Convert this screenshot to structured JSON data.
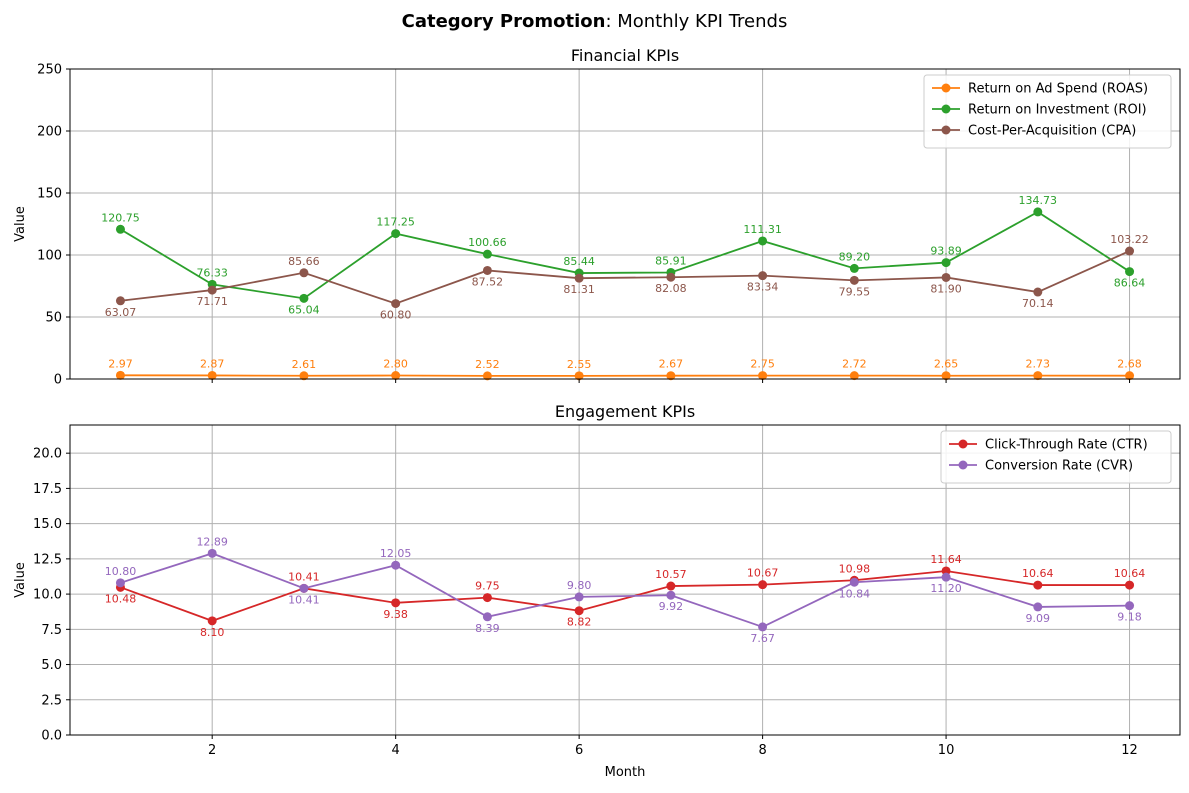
{
  "chart_data": {
    "suptitle_bold": "Category Promotion",
    "suptitle_rest": ": Monthly KPI Trends",
    "panels": [
      {
        "type": "line",
        "title": "Financial KPIs",
        "xlabel": "",
        "ylabel": "Value",
        "xlim": [
          0.45,
          12.55
        ],
        "ylim": [
          0,
          250
        ],
        "yticks": [
          0,
          50,
          100,
          150,
          200,
          250
        ],
        "ytick_labels": [
          "0",
          "50",
          "100",
          "150",
          "200",
          "250"
        ],
        "xticks": [
          2,
          4,
          6,
          8,
          10,
          12
        ],
        "xtick_labels": [],
        "grid": true,
        "legend": "top-right",
        "x": [
          1,
          2,
          3,
          4,
          5,
          6,
          7,
          8,
          9,
          10,
          11,
          12
        ],
        "series": [
          {
            "name": "Return on Ad Spend (ROAS)",
            "color": "#ff7f0e",
            "values": [
              2.97,
              2.87,
              2.61,
              2.8,
              2.52,
              2.55,
              2.67,
              2.75,
              2.72,
              2.65,
              2.73,
              2.68
            ],
            "labels": [
              "2.97",
              "2.87",
              "2.61",
              "2.80",
              "2.52",
              "2.55",
              "2.67",
              "2.75",
              "2.72",
              "2.65",
              "2.73",
              "2.68"
            ],
            "label_pos": [
              "above",
              "above",
              "above",
              "above",
              "above",
              "above",
              "above",
              "above",
              "above",
              "above",
              "above",
              "above"
            ]
          },
          {
            "name": "Return on Investment (ROI)",
            "color": "#2ca02c",
            "values": [
              120.75,
              76.33,
              65.04,
              117.25,
              100.66,
              85.44,
              85.91,
              111.31,
              89.2,
              93.89,
              134.73,
              86.64
            ],
            "labels": [
              "120.75",
              "76.33",
              "65.04",
              "117.25",
              "100.66",
              "85.44",
              "85.91",
              "111.31",
              "89.20",
              "93.89",
              "134.73",
              "86.64"
            ],
            "label_pos": [
              "above",
              "above",
              "below",
              "above",
              "above",
              "above",
              "above",
              "above",
              "above",
              "above",
              "above",
              "below"
            ]
          },
          {
            "name": "Cost-Per-Acquisition (CPA)",
            "color": "#8c564b",
            "values": [
              63.07,
              71.71,
              85.66,
              60.8,
              87.52,
              81.31,
              82.08,
              83.34,
              79.55,
              81.9,
              70.14,
              103.22
            ],
            "labels": [
              "63.07",
              "71.71",
              "85.66",
              "60.80",
              "87.52",
              "81.31",
              "82.08",
              "83.34",
              "79.55",
              "81.90",
              "70.14",
              "103.22"
            ],
            "label_pos": [
              "below",
              "below",
              "above",
              "below",
              "below",
              "below",
              "below",
              "below",
              "below",
              "below",
              "below",
              "above"
            ]
          }
        ]
      },
      {
        "type": "line",
        "title": "Engagement KPIs",
        "xlabel": "Month",
        "ylabel": "Value",
        "xlim": [
          0.45,
          12.55
        ],
        "ylim": [
          0,
          22
        ],
        "yticks": [
          0,
          2.5,
          5,
          7.5,
          10,
          12.5,
          15,
          17.5,
          20
        ],
        "ytick_labels": [
          "0.0",
          "2.5",
          "5.0",
          "7.5",
          "10.0",
          "12.5",
          "15.0",
          "17.5",
          "20.0"
        ],
        "xticks": [
          2,
          4,
          6,
          8,
          10,
          12
        ],
        "xtick_labels": [
          "2",
          "4",
          "6",
          "8",
          "10",
          "12"
        ],
        "grid": true,
        "legend": "top-right",
        "x": [
          1,
          2,
          3,
          4,
          5,
          6,
          7,
          8,
          9,
          10,
          11,
          12
        ],
        "series": [
          {
            "name": "Click-Through Rate (CTR)",
            "color": "#d62728",
            "values": [
              10.48,
              8.1,
              10.41,
              9.38,
              9.75,
              8.82,
              10.57,
              10.67,
              10.98,
              11.64,
              10.64,
              10.64
            ],
            "labels": [
              "10.48",
              "8.10",
              "10.41",
              "9.38",
              "9.75",
              "8.82",
              "10.57",
              "10.67",
              "10.98",
              "11.64",
              "10.64",
              "10.64"
            ],
            "label_pos": [
              "below",
              "below",
              "above",
              "below",
              "above",
              "below",
              "above",
              "above",
              "above",
              "above",
              "above",
              "above"
            ]
          },
          {
            "name": "Conversion Rate (CVR)",
            "color": "#9467bd",
            "values": [
              10.8,
              12.89,
              10.41,
              12.05,
              8.39,
              9.8,
              9.92,
              7.67,
              10.84,
              11.2,
              9.09,
              9.18
            ],
            "labels": [
              "10.80",
              "12.89",
              "10.41",
              "12.05",
              "8.39",
              "9.80",
              "9.92",
              "7.67",
              "10.84",
              "11.20",
              "9.09",
              "9.18"
            ],
            "label_pos": [
              "above",
              "above",
              "below",
              "above",
              "below",
              "above",
              "below",
              "below",
              "below",
              "below",
              "below",
              "below"
            ]
          }
        ]
      }
    ]
  }
}
